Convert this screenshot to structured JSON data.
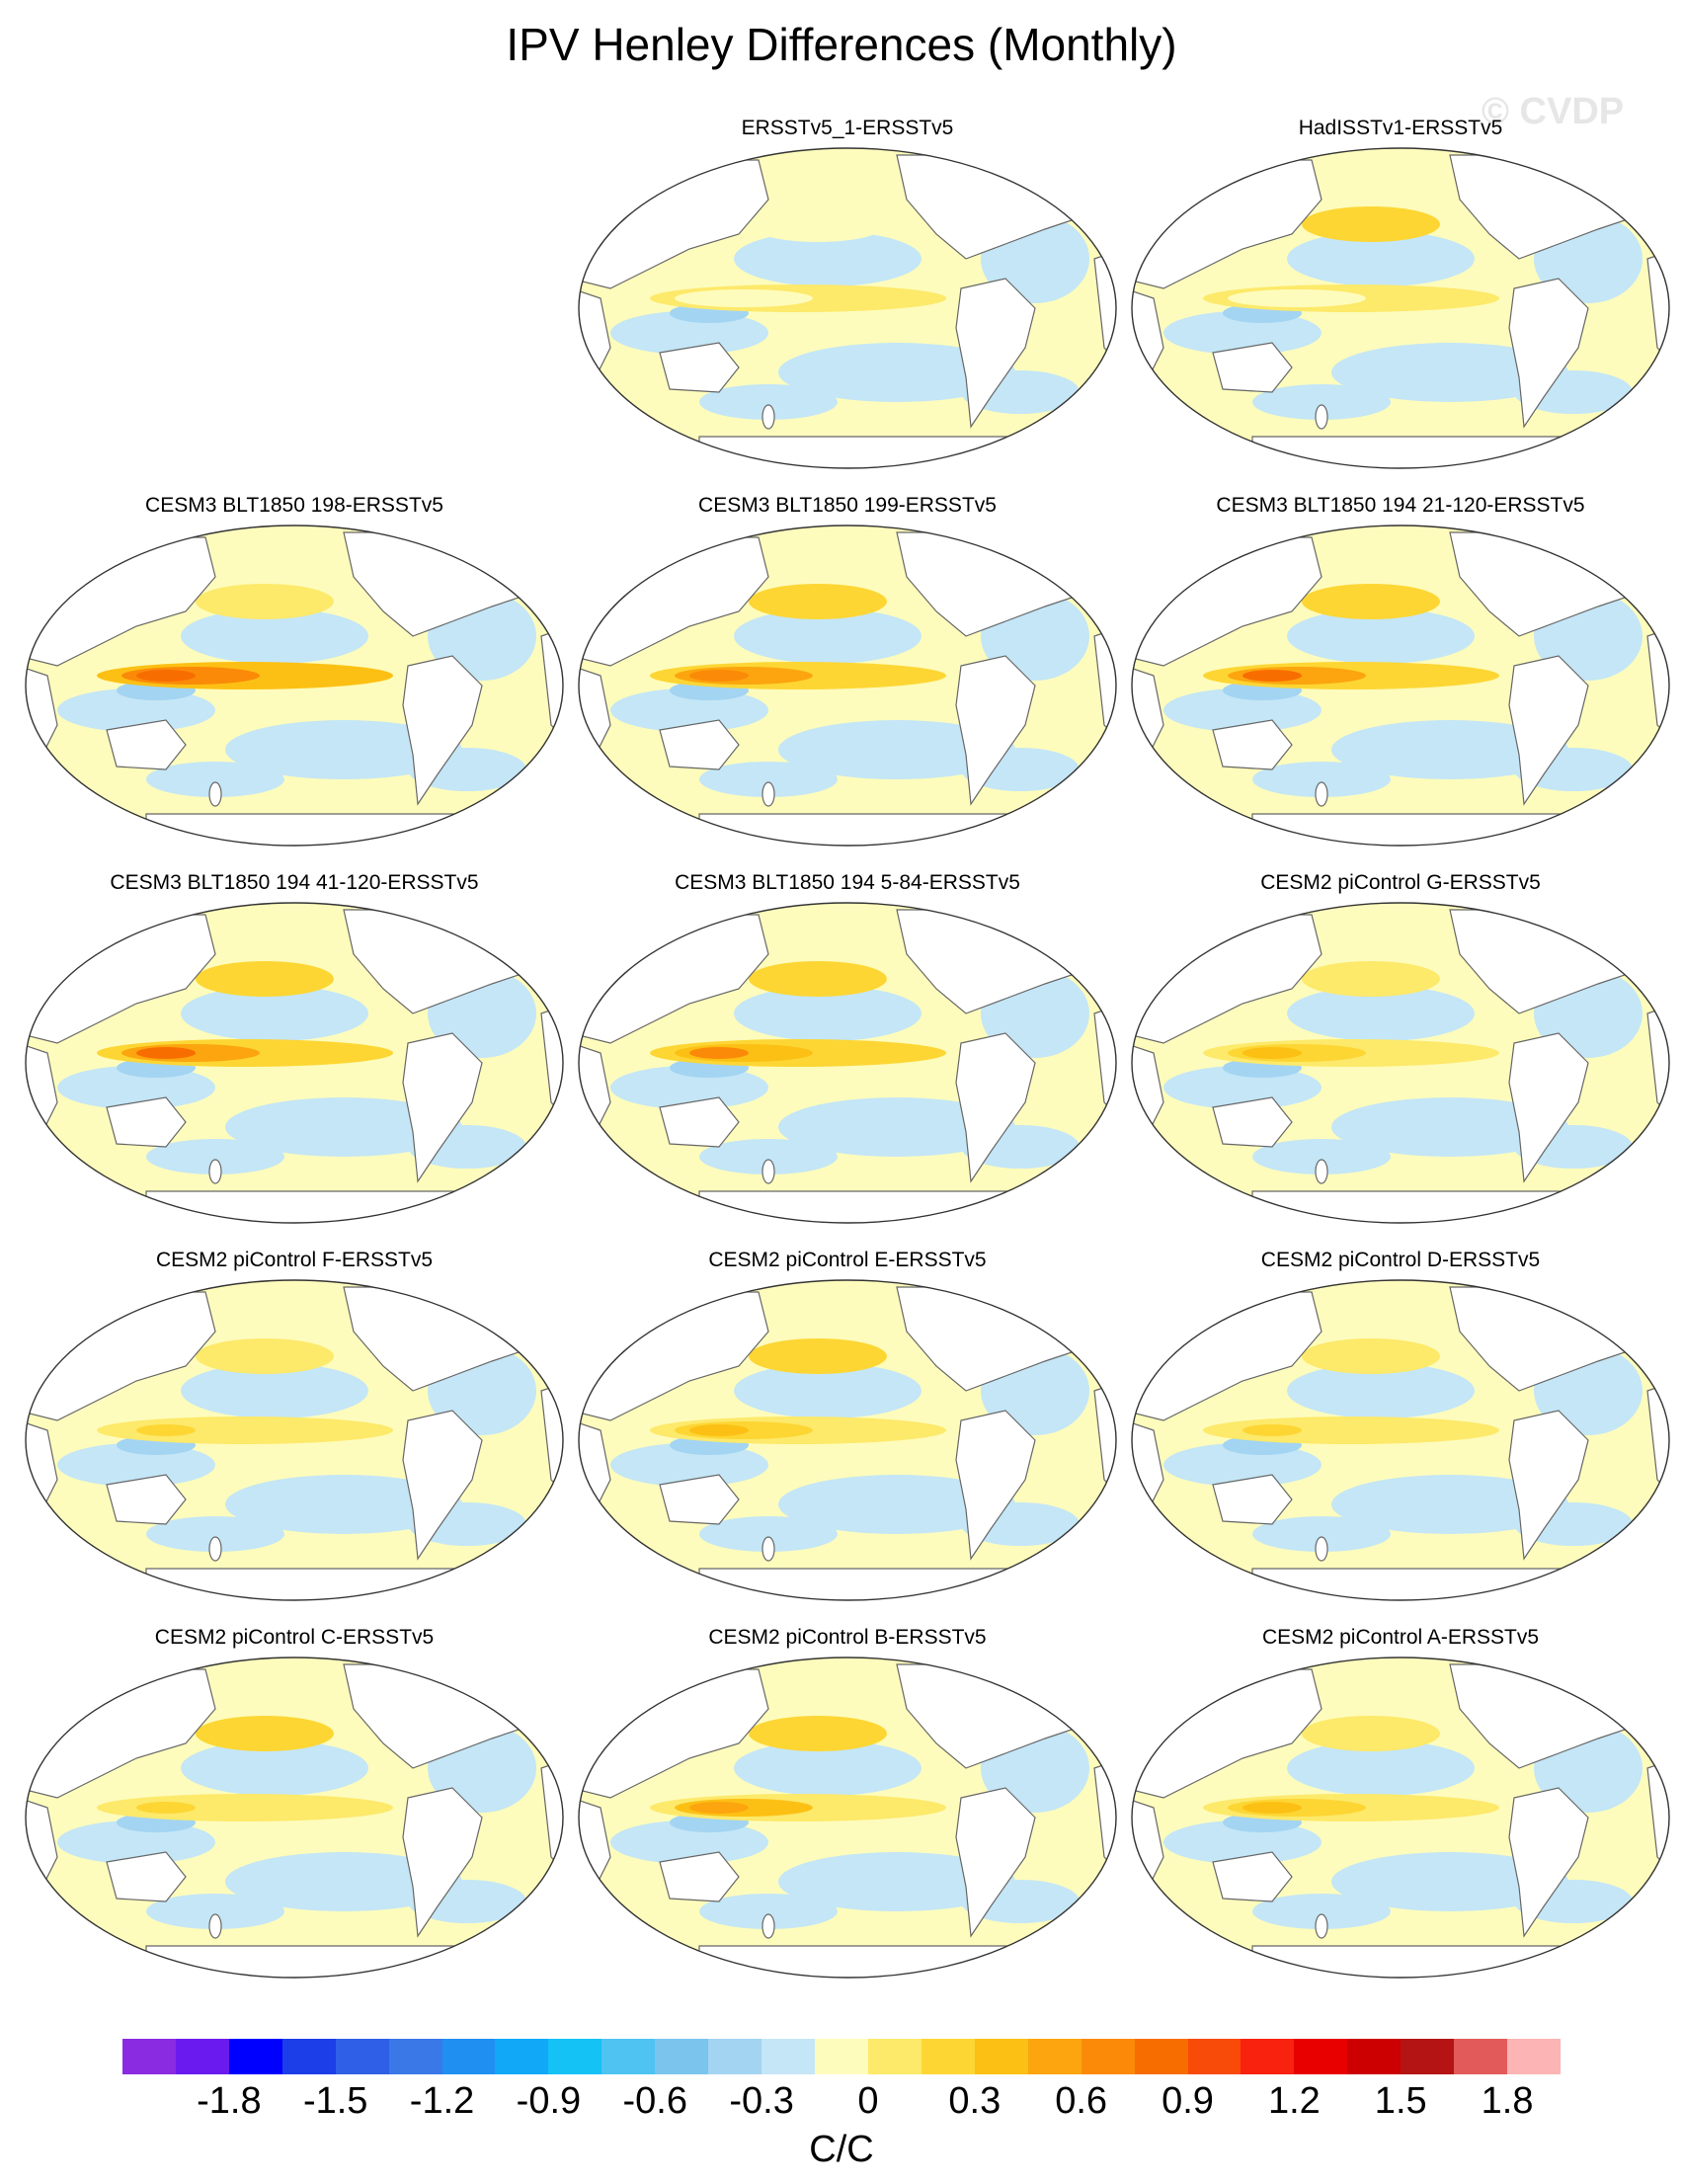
{
  "title": "IPV Henley Differences (Monthly)",
  "watermark": "© CVDP",
  "panels": [
    {
      "label": "ERSSTv5_1-ERSSTv5",
      "warm_pool": 0.2,
      "pacific_band": 0.15
    },
    {
      "label": "HadISSTv1-ERSSTv5",
      "warm_pool": 0.25,
      "pacific_band": 0.5
    },
    {
      "label": "CESM3 BLT1850 198-ERSSTv5",
      "warm_pool": 1.2,
      "pacific_band": 0.4
    },
    {
      "label": "CESM3 BLT1850 199-ERSSTv5",
      "warm_pool": 1.0,
      "pacific_band": 0.5
    },
    {
      "label": "CESM3 BLT1850 194 21-120-ERSSTv5",
      "warm_pool": 1.1,
      "pacific_band": 0.5
    },
    {
      "label": "CESM3 BLT1850 194 41-120-ERSSTv5",
      "warm_pool": 1.1,
      "pacific_band": 0.5
    },
    {
      "label": "CESM3 BLT1850 194 5-84-ERSSTv5",
      "warm_pool": 0.9,
      "pacific_band": 0.45
    },
    {
      "label": "CESM2 piControl G-ERSSTv5",
      "warm_pool": 0.6,
      "pacific_band": 0.4
    },
    {
      "label": "CESM2 piControl F-ERSSTv5",
      "warm_pool": 0.45,
      "pacific_band": 0.4
    },
    {
      "label": "CESM2 piControl E-ERSSTv5",
      "warm_pool": 0.6,
      "pacific_band": 0.45
    },
    {
      "label": "CESM2 piControl D-ERSSTv5",
      "warm_pool": 0.55,
      "pacific_band": 0.4
    },
    {
      "label": "CESM2 piControl C-ERSSTv5",
      "warm_pool": 0.5,
      "pacific_band": 0.45
    },
    {
      "label": "CESM2 piControl B-ERSSTv5",
      "warm_pool": 0.75,
      "pacific_band": 0.45
    },
    {
      "label": "CESM2 piControl A-ERSSTv5",
      "warm_pool": 0.6,
      "pacific_band": 0.4
    }
  ],
  "colorbar": {
    "units": "C/C",
    "tick_labels": [
      "-1.8",
      "-1.5",
      "-1.2",
      "-0.9",
      "-0.6",
      "-0.3",
      "0",
      "0.3",
      "0.6",
      "0.9",
      "1.2",
      "1.5",
      "1.8"
    ],
    "tick_values": [
      -1.8,
      -1.5,
      -1.2,
      -0.9,
      -0.6,
      -0.3,
      0,
      0.3,
      0.6,
      0.9,
      1.2,
      1.5,
      1.8
    ],
    "min": -2.1,
    "step": 0.15,
    "colors": [
      "#8a2be2",
      "#6a1aee",
      "#0000ff",
      "#1c3ee8",
      "#2f5fe6",
      "#3a78e8",
      "#1f8ff2",
      "#10a8f7",
      "#14c2f6",
      "#4fc3f2",
      "#7ac4ee",
      "#a3d4f2",
      "#c4e6f6",
      "#fefcbc",
      "#fde96a",
      "#fdd634",
      "#fcc014",
      "#fca50e",
      "#fb8a08",
      "#f86d00",
      "#f84a08",
      "#f8220e",
      "#e80000",
      "#cc0000",
      "#b41414",
      "#e25a5a",
      "#fcb4b4"
    ]
  }
}
